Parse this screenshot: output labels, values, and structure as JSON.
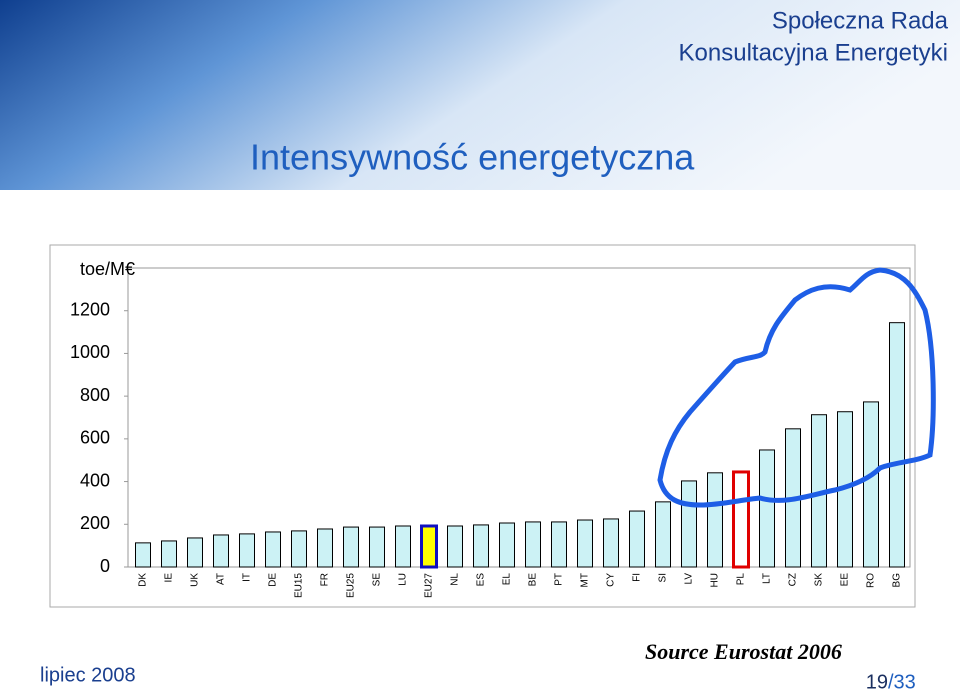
{
  "header": {
    "org_line1": "Społeczna Rada",
    "org_line2": "Konsultacyjna Energetyki"
  },
  "chart_data": {
    "type": "bar",
    "title": "Intensywność energetyczna",
    "ylabel": "toe/M€",
    "categories": [
      "DK",
      "IE",
      "UK",
      "AT",
      "IT",
      "DE",
      "EU15",
      "FR",
      "EU25",
      "SE",
      "LU",
      "EU27",
      "NL",
      "ES",
      "EL",
      "BE",
      "PT",
      "MT",
      "CY",
      "FI",
      "SI",
      "LV",
      "HU",
      "PL",
      "LT",
      "CZ",
      "SK",
      "EE",
      "RO",
      "BG"
    ],
    "values": [
      113,
      122,
      136,
      150,
      155,
      164,
      169,
      178,
      187,
      187,
      192,
      192,
      192,
      197,
      206,
      211,
      211,
      220,
      225,
      262,
      305,
      403,
      441,
      445,
      548,
      647,
      713,
      727,
      773,
      1144
    ],
    "color": "#ccf2f5",
    "edge_color": "#000000",
    "highlight_colors": {
      "EU27": {
        "fill": "#ffff00",
        "edge": "#1010c0"
      },
      "PL": {
        "fill": "#ffffff",
        "edge": "#e00000"
      }
    },
    "ylim": [
      0,
      1400
    ],
    "yticks": [
      0,
      200,
      400,
      600,
      800,
      1000,
      1200
    ],
    "grid": false
  },
  "footer": {
    "date": "lipiec 2008",
    "source": "Source Eurostat 2006",
    "page": "19",
    "total": "/33"
  }
}
